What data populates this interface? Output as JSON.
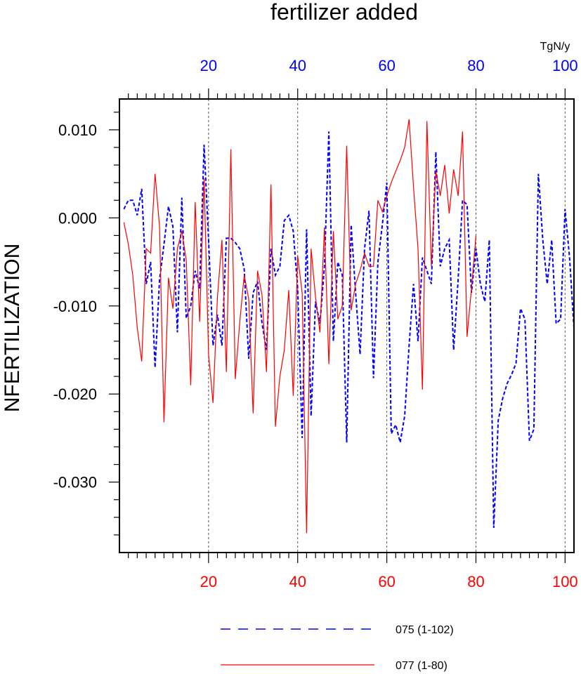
{
  "chart_data": {
    "type": "line",
    "title": "fertilizer added",
    "ylabel": "NFERTILIZATION",
    "top_axis_unit": "TgN/y",
    "xlim": [
      0,
      102
    ],
    "ylim": [
      -0.038,
      0.0135
    ],
    "y_ticks": [
      0.01,
      0.0,
      -0.01,
      -0.02,
      -0.03
    ],
    "y_tick_labels": [
      "0.010",
      "0.000",
      "-0.010",
      "-0.020",
      "-0.030"
    ],
    "bottom_ticks": [
      20,
      40,
      60,
      80,
      100
    ],
    "bottom_tick_labels": [
      "20",
      "40",
      "60",
      "80",
      "100"
    ],
    "top_ticks": [
      20,
      40,
      60,
      80,
      100
    ],
    "top_tick_labels": [
      "20",
      "40",
      "60",
      "80",
      "100"
    ],
    "gridlines_x": [
      20,
      40,
      60,
      80,
      100
    ],
    "colors": {
      "top_axis": "#0000ff",
      "bottom_axis": "#ff0000"
    },
    "series": [
      {
        "name": "075 (1-102)",
        "color": "#0000ff",
        "dash": "dashed",
        "x": [
          1,
          2,
          3,
          4,
          5,
          6,
          7,
          8,
          9,
          10,
          11,
          12,
          13,
          14,
          15,
          16,
          17,
          18,
          19,
          20,
          21,
          22,
          23,
          24,
          25,
          26,
          27,
          28,
          29,
          30,
          31,
          32,
          33,
          34,
          35,
          36,
          37,
          38,
          39,
          40,
          41,
          42,
          43,
          44,
          45,
          46,
          47,
          48,
          49,
          50,
          51,
          52,
          53,
          54,
          55,
          56,
          57,
          58,
          59,
          60,
          61,
          62,
          63,
          64,
          65,
          66,
          67,
          68,
          69,
          70,
          71,
          72,
          73,
          74,
          75,
          76,
          77,
          78,
          79,
          80,
          81,
          82,
          83,
          84,
          85,
          86,
          87,
          88,
          89,
          90,
          91,
          92,
          93,
          94,
          95,
          96,
          97,
          98,
          99,
          100,
          101,
          102
        ],
        "values": [
          0.001,
          0.002,
          0.002,
          0.0003,
          0.0033,
          -0.0075,
          -0.005,
          -0.017,
          -0.007,
          -0.003,
          0.0013,
          -0.001,
          -0.013,
          0.0023,
          -0.0114,
          -0.01,
          -0.006,
          -0.008,
          0.0083,
          -0.0025,
          -0.0145,
          -0.011,
          -0.0145,
          -0.0023,
          -0.0023,
          -0.0028,
          -0.0035,
          -0.0058,
          -0.016,
          -0.0085,
          -0.0072,
          -0.012,
          -0.015,
          -0.0035,
          -0.0065,
          -0.0055,
          -0.0003,
          0.0003,
          -0.0015,
          -0.008,
          -0.025,
          -0.0013,
          -0.0225,
          -0.0095,
          -0.012,
          -0.0055,
          0.0098,
          -0.014,
          -0.005,
          -0.0065,
          -0.0255,
          -0.0008,
          -0.0085,
          -0.0155,
          -0.0035,
          0.0008,
          -0.0182,
          -0.005,
          -0.0008,
          0.004,
          -0.0245,
          -0.0235,
          -0.0255,
          -0.0225,
          -0.0145,
          -0.0075,
          -0.014,
          -0.0045,
          -0.006,
          -0.0075,
          0.0075,
          -0.0055,
          -0.0035,
          -0.0025,
          -0.015,
          -0.007,
          0.002,
          0.0015,
          -0.0085,
          -0.0035,
          -0.0075,
          -0.0095,
          -0.0025,
          -0.0352,
          -0.023,
          -0.0205,
          -0.0188,
          -0.0178,
          -0.0165,
          -0.0103,
          -0.0115,
          -0.0253,
          -0.024,
          0.005,
          -0.0025,
          -0.0075,
          -0.0025,
          -0.012,
          -0.0115,
          0.001,
          -0.0045,
          -0.0125
        ]
      },
      {
        "name": "077 (1-80)",
        "color": "#ff0000",
        "dash": "solid",
        "x": [
          1,
          2,
          3,
          4,
          5,
          6,
          7,
          8,
          9,
          10,
          11,
          12,
          13,
          14,
          15,
          16,
          17,
          18,
          19,
          20,
          21,
          22,
          23,
          24,
          25,
          26,
          27,
          28,
          29,
          30,
          31,
          32,
          33,
          34,
          35,
          36,
          37,
          38,
          39,
          40,
          41,
          42,
          43,
          44,
          45,
          46,
          47,
          48,
          49,
          50,
          51,
          52,
          53,
          54,
          55,
          56,
          57,
          58,
          59,
          60,
          61,
          62,
          63,
          64,
          65,
          66,
          67,
          68,
          69,
          70,
          71,
          72,
          73,
          74,
          75,
          76,
          77,
          78,
          79,
          80
        ],
        "values": [
          -0.0005,
          -0.003,
          -0.0065,
          -0.0125,
          -0.0163,
          -0.0035,
          -0.004,
          0.005,
          -0.001,
          -0.0232,
          -0.0068,
          -0.0103,
          -0.0035,
          -0.0015,
          -0.0048,
          -0.019,
          0.0018,
          -0.0118,
          0.0045,
          -0.0155,
          -0.021,
          -0.009,
          -0.0025,
          -0.0175,
          0.0078,
          -0.0183,
          -0.0118,
          -0.0065,
          -0.0092,
          -0.0222,
          -0.006,
          -0.0088,
          -0.0175,
          0.0038,
          -0.0237,
          -0.018,
          -0.015,
          -0.0082,
          -0.0202,
          -0.0043,
          -0.0085,
          -0.0358,
          -0.0035,
          -0.009,
          -0.013,
          -0.0011,
          -0.0166,
          -0.0015,
          -0.0115,
          -0.01,
          0.0082,
          -0.0105,
          -0.0075,
          -0.006,
          -0.004,
          -0.0055,
          -0.0055,
          0.002,
          0.0007,
          0.0025,
          0.004,
          0.0053,
          0.0065,
          0.008,
          0.0112,
          0.0035,
          -0.0035,
          -0.0195,
          0.011,
          -0.0055,
          0.0053,
          0.0025,
          0.006,
          0.0005,
          0.0055,
          0.0025,
          0.0098,
          -0.0135,
          -0.008,
          -0.002
        ]
      }
    ],
    "legend": [
      {
        "label": "075 (1-102)",
        "style": "dashed",
        "color": "#0000ff"
      },
      {
        "label": "077 (1-80)",
        "style": "solid",
        "color": "#ff0000"
      }
    ]
  }
}
